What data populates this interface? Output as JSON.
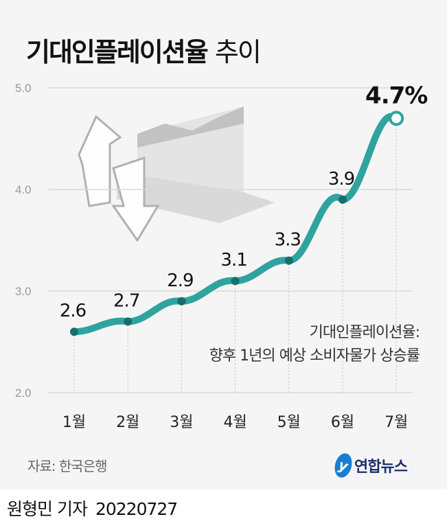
{
  "title": {
    "main": "기대인플레이션율",
    "sub": "추이"
  },
  "chart_data": {
    "type": "line",
    "title": "기대인플레이션율 추이",
    "categories": [
      "1월",
      "2월",
      "3월",
      "4월",
      "5월",
      "6월",
      "7월"
    ],
    "values": [
      2.6,
      2.7,
      2.9,
      3.1,
      3.3,
      3.9,
      4.7
    ],
    "data_labels": [
      "2.6",
      "2.7",
      "2.9",
      "3.1",
      "3.3",
      "3.9",
      "4.7%"
    ],
    "yticks": [
      "2.0",
      "3.0",
      "4.0",
      "5.0"
    ],
    "ylim": [
      2.0,
      5.0
    ],
    "grid": true,
    "color": "#2fa39f"
  },
  "note": {
    "line1": "기대인플레이션율:",
    "line2": "향후 1년의 예상 소비자물가 상승률"
  },
  "source": "자료: 한국은행",
  "logo": {
    "mark": "y",
    "text": "연합뉴스"
  },
  "byline": {
    "author": "원형민 기자",
    "date": "20220727"
  }
}
